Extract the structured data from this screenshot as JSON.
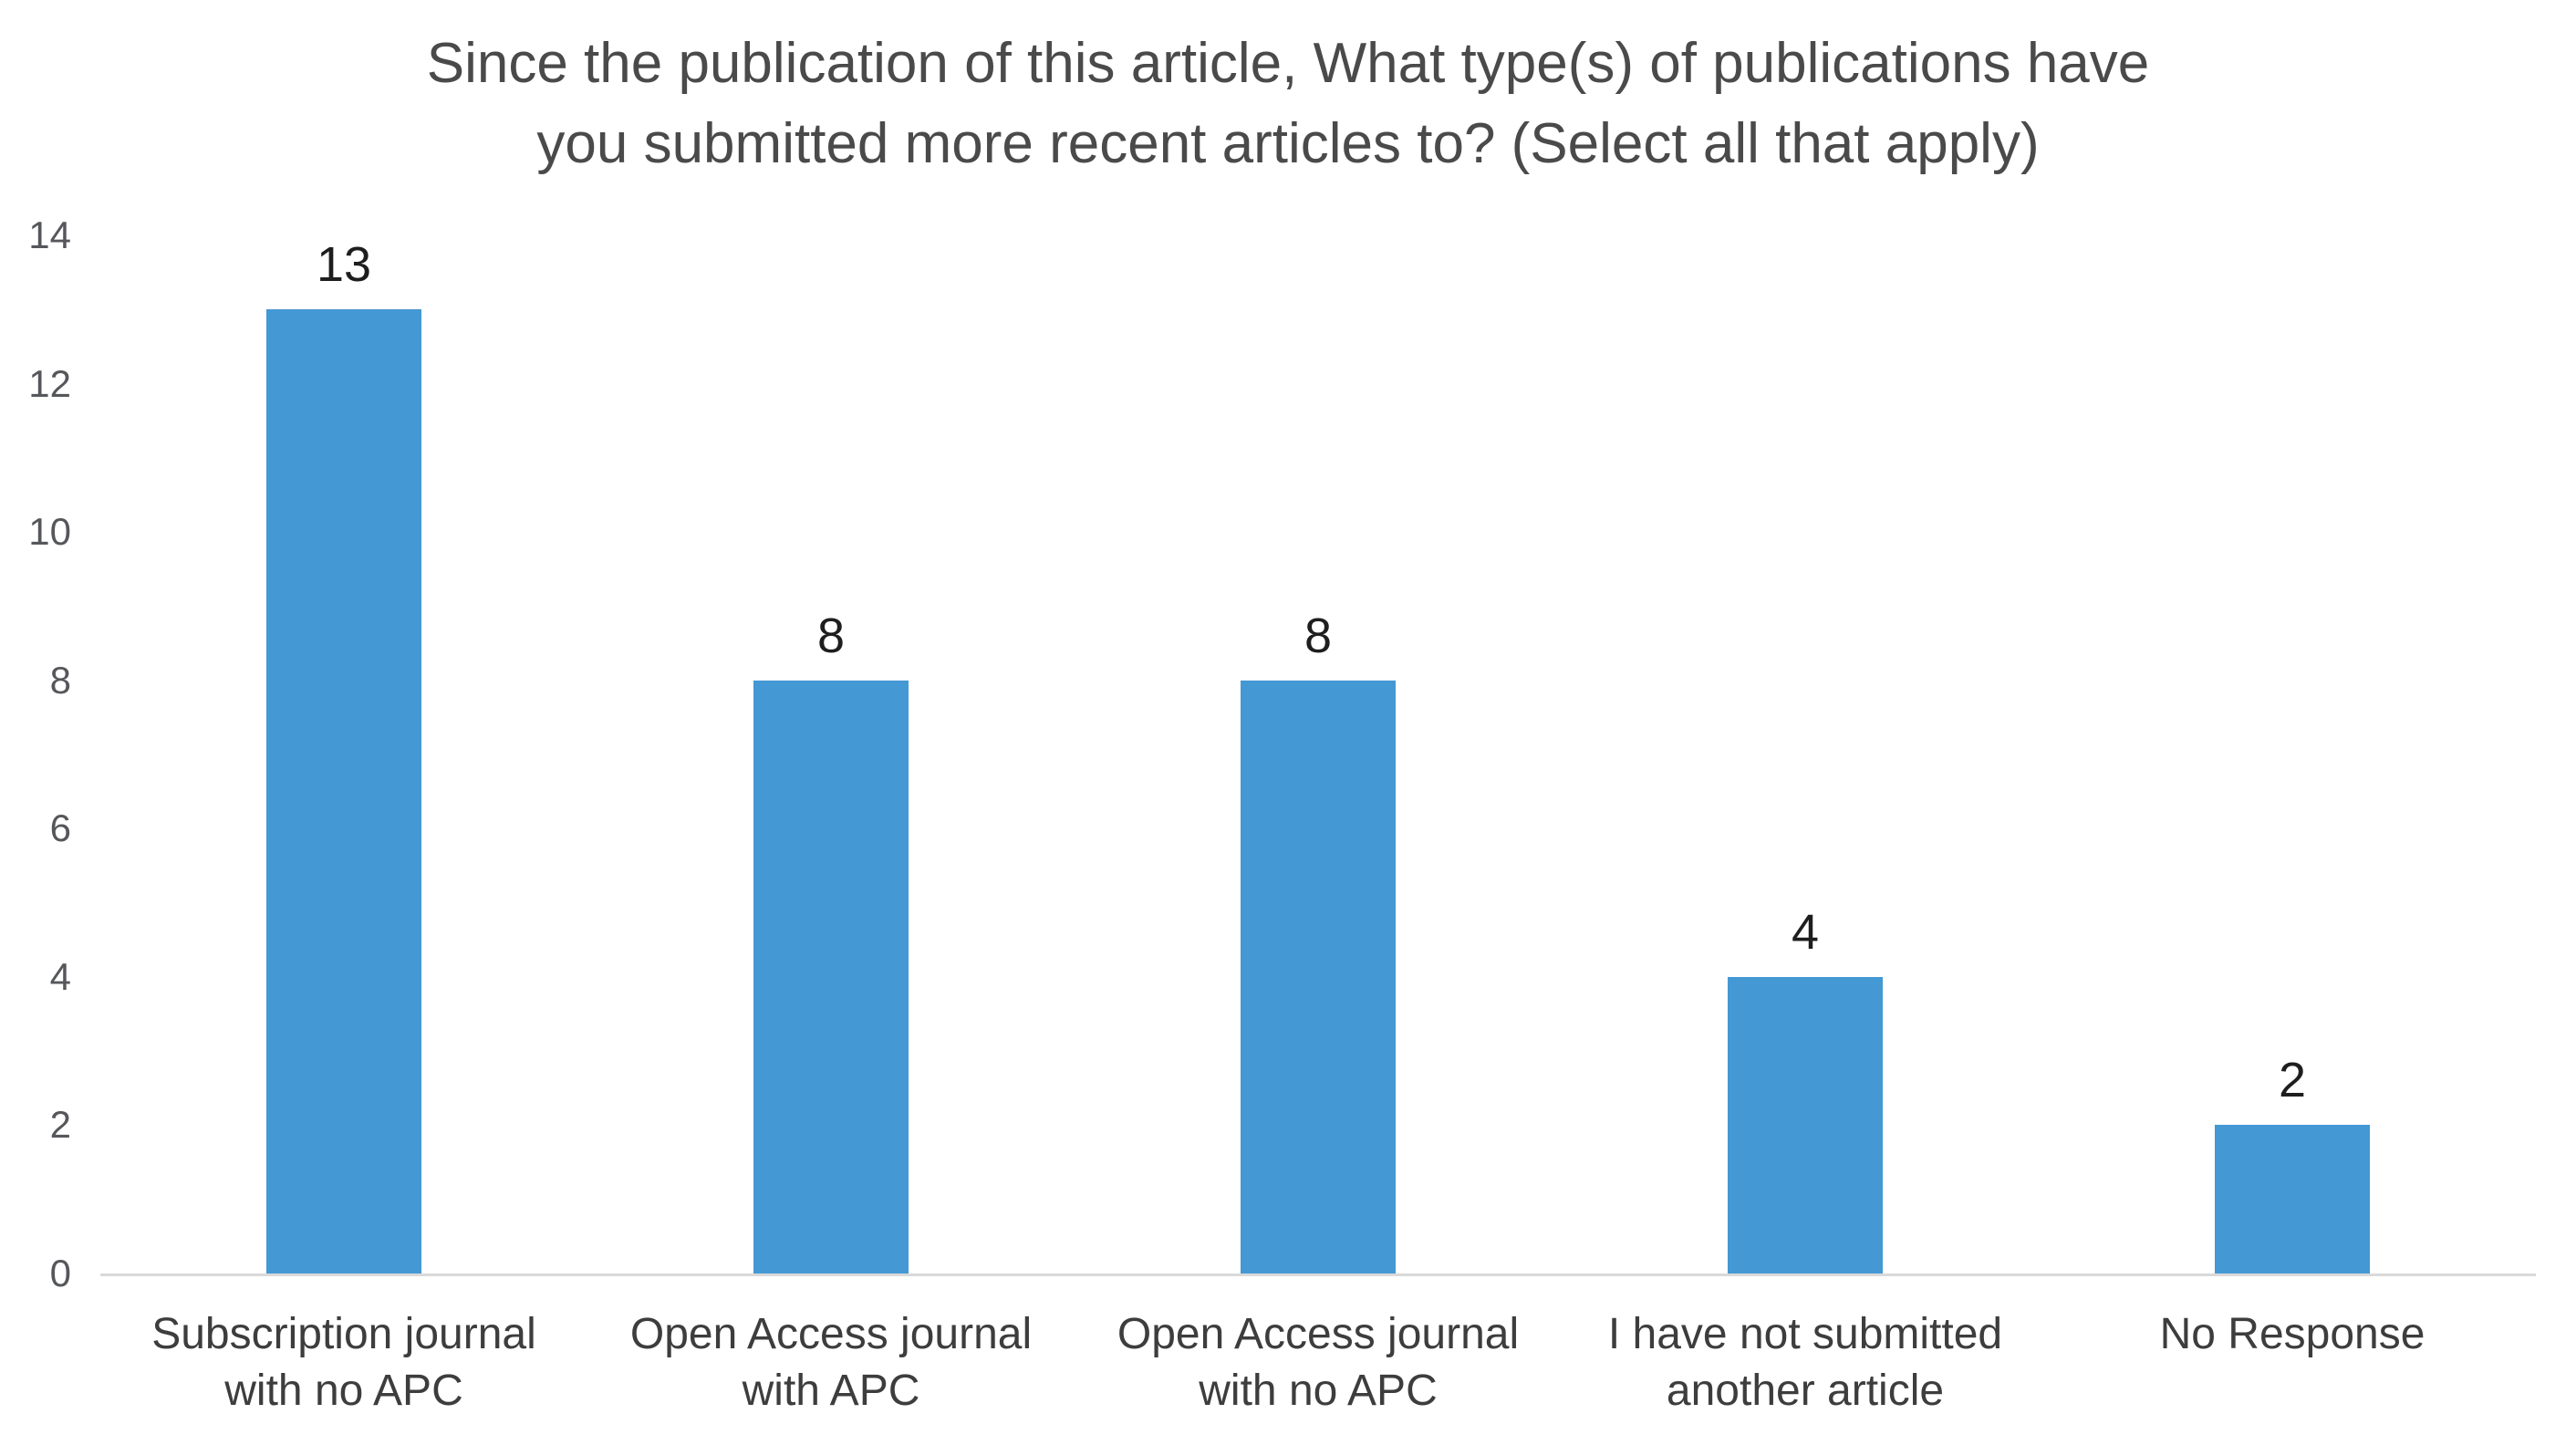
{
  "title": {
    "text": "Since the publication of this article, What type(s) of publications have\nyou submitted more recent articles to? (Select all that apply)"
  },
  "chart_data": {
    "type": "bar",
    "title": "Since the publication of this article, What type(s) of publications have you submitted more recent articles to? (Select all that apply)",
    "categories": [
      "Subscription journal with no APC",
      "Open Access journal with APC",
      "Open Access journal with no APC",
      "I have not submitted another article",
      "No Response"
    ],
    "values": [
      13,
      8,
      8,
      4,
      2
    ],
    "value_labels": [
      "13",
      "8",
      "8",
      "4",
      "2"
    ],
    "xtick_labels": [
      "Subscription journal\nwith no APC",
      "Open Access journal\nwith APC",
      "Open Access journal\nwith no APC",
      "I have not submitted\nanother article",
      "No Response"
    ],
    "ytick_labels": [
      "0",
      "2",
      "4",
      "6",
      "8",
      "10",
      "12",
      "14"
    ],
    "ytick_values": [
      0,
      2,
      4,
      6,
      8,
      10,
      12,
      14
    ],
    "ylim": [
      0,
      14
    ],
    "xlabel": "",
    "ylabel": "",
    "grid": false,
    "legend": "none",
    "colors": {
      "bar": "#4498d3",
      "axis_line": "#d9d9d9",
      "title_text": "#4a4a4a",
      "ytick_text": "#55575b",
      "category_text": "#3d3d3d",
      "value_text": "#1e1e1e",
      "background": "#ffffff"
    }
  }
}
